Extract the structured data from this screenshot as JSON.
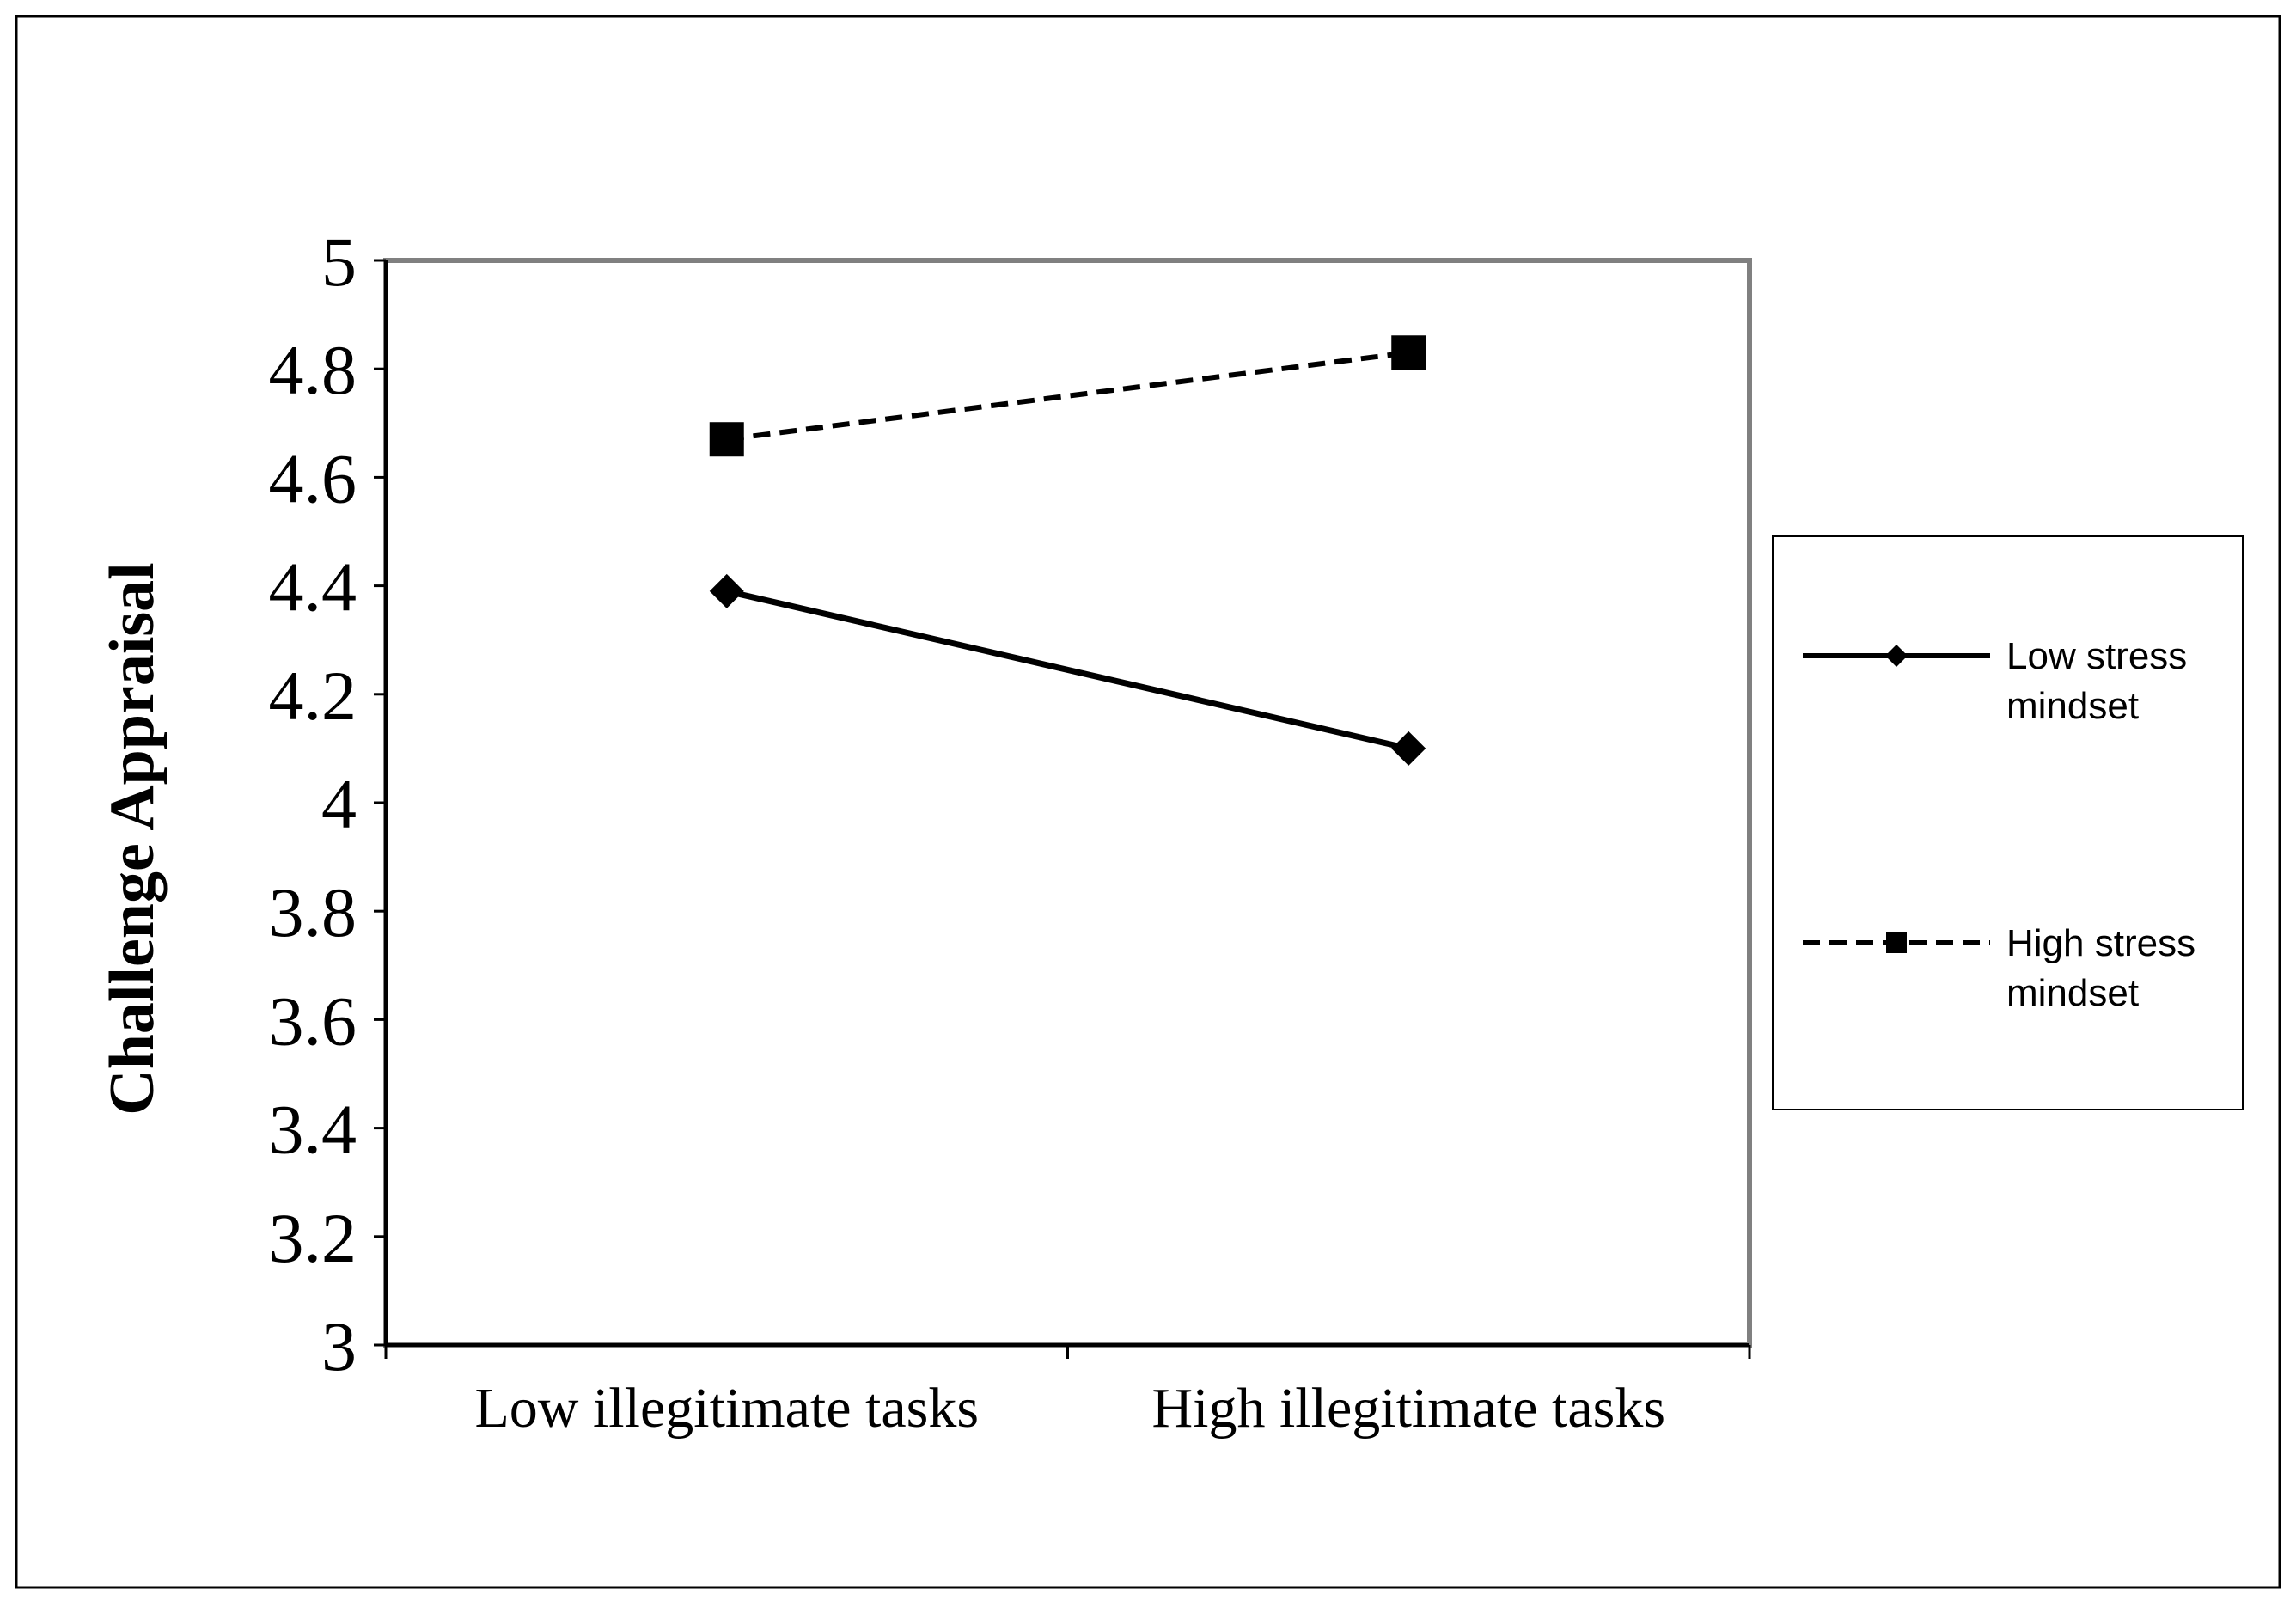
{
  "chart_data": {
    "type": "line",
    "title": "",
    "xlabel": "",
    "ylabel": "Challenge Appraisal",
    "categories": [
      "Low illegitimate tasks",
      "High illegitimate tasks"
    ],
    "ylim": [
      3,
      5
    ],
    "yticks": [
      "3",
      "3.2",
      "3.4",
      "3.6",
      "3.8",
      "4",
      "4.2",
      "4.4",
      "4.6",
      "4.8",
      "5"
    ],
    "grid": false,
    "legend_position": "right",
    "series": [
      {
        "name": "Low stress mindset",
        "name_lines": [
          "Low stress",
          "mindset"
        ],
        "values": [
          4.39,
          4.1
        ],
        "marker": "diamond",
        "line_style": "solid",
        "color": "#000000"
      },
      {
        "name": "High stress mindset",
        "name_lines": [
          "High stress",
          "mindset"
        ],
        "values": [
          4.67,
          4.83
        ],
        "marker": "square",
        "line_style": "dashed",
        "color": "#000000"
      }
    ]
  }
}
